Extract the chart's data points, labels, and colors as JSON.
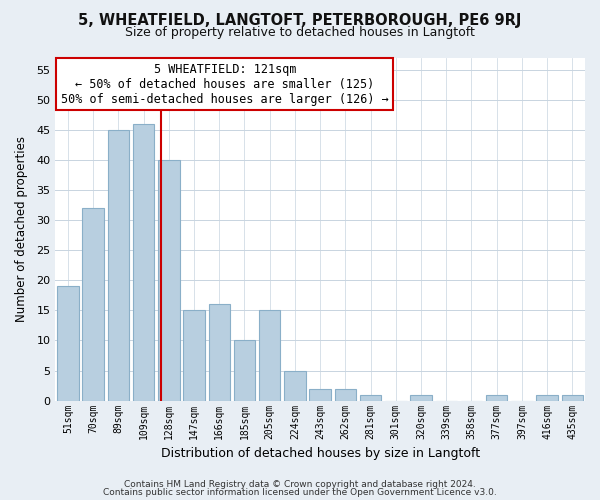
{
  "title": "5, WHEATFIELD, LANGTOFT, PETERBOROUGH, PE6 9RJ",
  "subtitle": "Size of property relative to detached houses in Langtoft",
  "xlabel": "Distribution of detached houses by size in Langtoft",
  "ylabel": "Number of detached properties",
  "bar_color": "#b8cfe0",
  "bar_edge_color": "#8aafc8",
  "vline_color": "#cc0000",
  "categories": [
    "51sqm",
    "70sqm",
    "89sqm",
    "109sqm",
    "128sqm",
    "147sqm",
    "166sqm",
    "185sqm",
    "205sqm",
    "224sqm",
    "243sqm",
    "262sqm",
    "281sqm",
    "301sqm",
    "320sqm",
    "339sqm",
    "358sqm",
    "377sqm",
    "397sqm",
    "416sqm",
    "435sqm"
  ],
  "values": [
    19,
    32,
    45,
    46,
    40,
    15,
    16,
    10,
    15,
    5,
    2,
    2,
    1,
    0,
    1,
    0,
    0,
    1,
    0,
    1,
    1
  ],
  "ylim": [
    0,
    57
  ],
  "yticks": [
    0,
    5,
    10,
    15,
    20,
    25,
    30,
    35,
    40,
    45,
    50,
    55
  ],
  "annotation_title": "5 WHEATFIELD: 121sqm",
  "annotation_line1": "← 50% of detached houses are smaller (125)",
  "annotation_line2": "50% of semi-detached houses are larger (126) →",
  "annotation_box_color": "#ffffff",
  "annotation_box_edge": "#cc0000",
  "footer1": "Contains HM Land Registry data © Crown copyright and database right 2024.",
  "footer2": "Contains public sector information licensed under the Open Government Licence v3.0.",
  "background_color": "#e8eef4",
  "plot_background": "#ffffff",
  "grid_color": "#c8d4e0",
  "vline_bar_index": 4
}
